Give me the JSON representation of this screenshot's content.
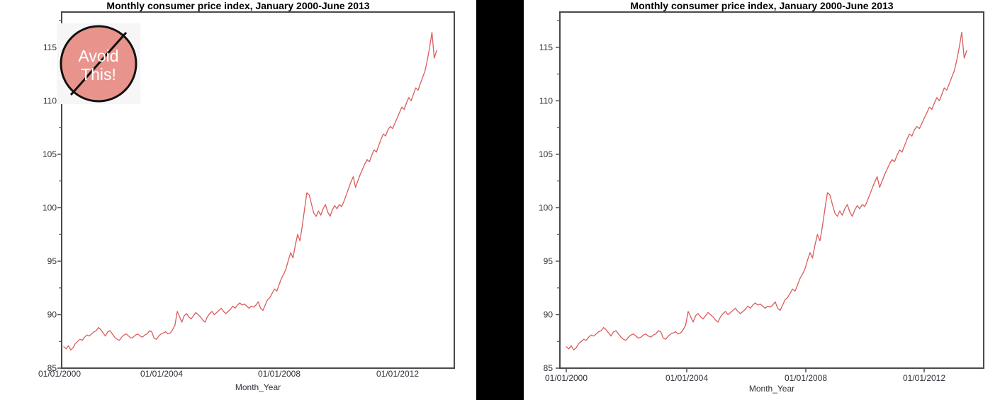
{
  "chart_data": {
    "type": "line",
    "title": "Monthly consumer price index, January 2000-June 2013",
    "xlabel": "Month_Year",
    "x_tick_labels": [
      "01/01/2000",
      "01/01/2004",
      "01/01/2008",
      "01/01/2012"
    ],
    "y_ticks": [
      85,
      90,
      95,
      100,
      105,
      110,
      115
    ],
    "y_minor_ticks": [
      87.5,
      92.5,
      97.5,
      102.5,
      107.5,
      112.5,
      117.5
    ],
    "ylim": [
      85,
      118.3
    ],
    "x_range": [
      "01/01/2000",
      "06/01/2013"
    ],
    "grid": false,
    "legend": "none",
    "series": [
      {
        "name": "Monthly consumer price index",
        "color": "#d95c5c",
        "values": [
          87.0,
          86.8,
          87.1,
          86.7,
          86.9,
          87.3,
          87.5,
          87.7,
          87.6,
          87.9,
          88.1,
          88.0,
          88.2,
          88.4,
          88.5,
          88.8,
          88.6,
          88.3,
          88.0,
          88.4,
          88.5,
          88.2,
          87.9,
          87.7,
          87.6,
          87.9,
          88.1,
          88.2,
          88.0,
          87.8,
          87.9,
          88.1,
          88.2,
          88.0,
          87.9,
          88.1,
          88.2,
          88.5,
          88.4,
          87.8,
          87.7,
          88.0,
          88.2,
          88.3,
          88.4,
          88.2,
          88.3,
          88.6,
          89.0,
          90.3,
          89.8,
          89.3,
          89.9,
          90.1,
          89.8,
          89.6,
          89.9,
          90.2,
          90.0,
          89.8,
          89.5,
          89.3,
          89.8,
          90.1,
          90.3,
          90.0,
          90.2,
          90.4,
          90.6,
          90.3,
          90.1,
          90.3,
          90.5,
          90.8,
          90.6,
          90.9,
          91.1,
          90.9,
          91.0,
          90.8,
          90.6,
          90.8,
          90.7,
          90.9,
          91.2,
          90.6,
          90.4,
          90.9,
          91.4,
          91.6,
          92.0,
          92.4,
          92.2,
          92.8,
          93.4,
          93.8,
          94.3,
          95.1,
          95.8,
          95.3,
          96.5,
          97.5,
          96.9,
          98.3,
          99.9,
          101.4,
          101.2,
          100.3,
          99.5,
          99.2,
          99.7,
          99.3,
          99.9,
          100.3,
          99.6,
          99.2,
          99.8,
          100.2,
          99.9,
          100.3,
          100.1,
          100.6,
          101.2,
          101.8,
          102.4,
          102.9,
          101.9,
          102.5,
          103.1,
          103.6,
          104.1,
          104.5,
          104.3,
          104.9,
          105.4,
          105.2,
          105.8,
          106.4,
          106.9,
          106.7,
          107.3,
          107.6,
          107.4,
          107.9,
          108.4,
          108.9,
          109.4,
          109.2,
          109.8,
          110.3,
          110.0,
          110.6,
          111.2,
          111.0,
          111.6,
          112.2,
          112.8,
          113.8,
          115.0,
          116.4,
          114.0,
          114.7
        ]
      }
    ]
  },
  "badge": {
    "line1": "Avoid",
    "line2": "This!",
    "fill": "#e8948d",
    "stroke": "#111111",
    "text_color": "#ffffff"
  },
  "colors": {
    "axis": "#4a4a4a",
    "tick_label": "#30303a",
    "title": "#000000",
    "line": "#d95c5c",
    "divider": "#000000",
    "background": "#ffffff"
  },
  "panels": [
    {
      "id": "left",
      "has_x_tick_marks": false,
      "has_badge": true
    },
    {
      "id": "right",
      "has_x_tick_marks": true,
      "has_badge": false
    }
  ]
}
